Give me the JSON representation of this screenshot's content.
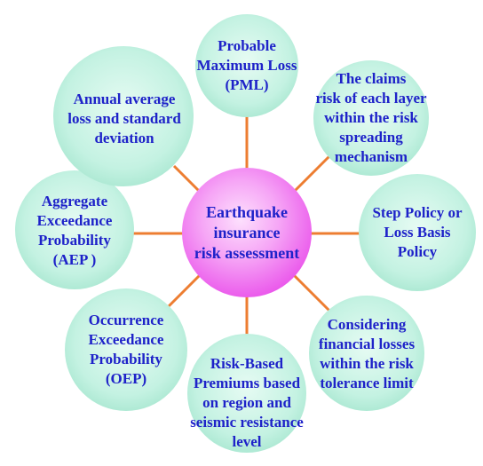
{
  "colors": {
    "outer_fill": "#c4f2e2",
    "center_fill": "#f05ef2",
    "connector": "#ed7d31",
    "text": "#1e22c9"
  },
  "center": {
    "label": "Earthquake\ninsurance\nrisk assessment"
  },
  "nodes": [
    {
      "id": "pml",
      "label": "Probable\nMaximum Loss\n(PML)"
    },
    {
      "id": "layer-claims",
      "label": "The claims\nrisk of each layer\nwithin the risk\nspreading\nmechanism"
    },
    {
      "id": "step-policy",
      "label": "Step Policy or\nLoss Basis\nPolicy"
    },
    {
      "id": "financial-losses",
      "label": "Considering\nfinancial losses\nwithin the risk\ntolerance limit"
    },
    {
      "id": "risk-premiums",
      "label": "Risk-Based\nPremiums based\non region and\nseismic resistance\nlevel"
    },
    {
      "id": "oep",
      "label": "Occurrence\nExceedance\nProbability\n(OEP)"
    },
    {
      "id": "aep",
      "label": "Aggregate\nExceedance\nProbability\n(AEP )"
    },
    {
      "id": "annual-loss",
      "label": "Annual average\nloss and standard\ndeviation"
    }
  ]
}
